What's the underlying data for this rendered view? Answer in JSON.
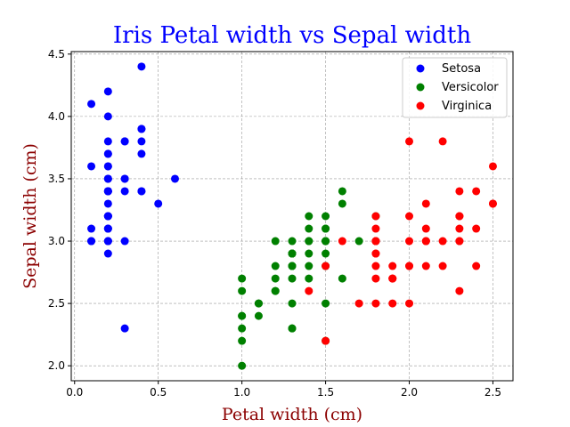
{
  "chart_data": {
    "type": "scatter",
    "title": "Iris Petal width vs Sepal width",
    "xlabel": "Petal width (cm)",
    "ylabel": "Sepal width (cm)",
    "xlim": [
      -0.02,
      2.62
    ],
    "ylim": [
      1.88,
      4.52
    ],
    "xticks": [
      0.0,
      0.5,
      1.0,
      1.5,
      2.0,
      2.5
    ],
    "xtick_labels": [
      "0.0",
      "0.5",
      "1.0",
      "1.5",
      "2.0",
      "2.5"
    ],
    "yticks": [
      2.0,
      2.5,
      3.0,
      3.5,
      4.0,
      4.5
    ],
    "ytick_labels": [
      "2.0",
      "2.5",
      "3.0",
      "3.5",
      "4.0",
      "4.5"
    ],
    "grid": true,
    "legend_position": "top-right",
    "series": [
      {
        "name": "Setosa",
        "color": "#0000ff",
        "points": [
          [
            0.2,
            3.5
          ],
          [
            0.2,
            3.0
          ],
          [
            0.2,
            3.2
          ],
          [
            0.2,
            3.1
          ],
          [
            0.2,
            3.6
          ],
          [
            0.4,
            3.9
          ],
          [
            0.3,
            3.4
          ],
          [
            0.2,
            3.4
          ],
          [
            0.2,
            2.9
          ],
          [
            0.1,
            3.1
          ],
          [
            0.2,
            3.7
          ],
          [
            0.2,
            3.4
          ],
          [
            0.1,
            3.0
          ],
          [
            0.1,
            3.0
          ],
          [
            0.2,
            4.0
          ],
          [
            0.4,
            4.4
          ],
          [
            0.4,
            3.9
          ],
          [
            0.3,
            3.5
          ],
          [
            0.3,
            3.8
          ],
          [
            0.3,
            3.8
          ],
          [
            0.2,
            3.4
          ],
          [
            0.4,
            3.7
          ],
          [
            0.2,
            3.6
          ],
          [
            0.5,
            3.3
          ],
          [
            0.2,
            3.4
          ],
          [
            0.2,
            3.0
          ],
          [
            0.4,
            3.4
          ],
          [
            0.2,
            3.5
          ],
          [
            0.2,
            3.4
          ],
          [
            0.2,
            3.2
          ],
          [
            0.2,
            3.1
          ],
          [
            0.4,
            3.4
          ],
          [
            0.1,
            4.1
          ],
          [
            0.2,
            4.2
          ],
          [
            0.2,
            3.1
          ],
          [
            0.2,
            3.2
          ],
          [
            0.2,
            3.5
          ],
          [
            0.1,
            3.6
          ],
          [
            0.2,
            3.0
          ],
          [
            0.2,
            3.4
          ],
          [
            0.3,
            3.5
          ],
          [
            0.3,
            2.3
          ],
          [
            0.2,
            3.2
          ],
          [
            0.6,
            3.5
          ],
          [
            0.4,
            3.8
          ],
          [
            0.3,
            3.0
          ],
          [
            0.2,
            3.8
          ],
          [
            0.2,
            3.2
          ],
          [
            0.2,
            3.7
          ],
          [
            0.2,
            3.3
          ]
        ]
      },
      {
        "name": "Versicolor",
        "color": "#008000",
        "points": [
          [
            1.4,
            3.2
          ],
          [
            1.5,
            3.2
          ],
          [
            1.5,
            3.1
          ],
          [
            1.3,
            2.3
          ],
          [
            1.5,
            2.8
          ],
          [
            1.3,
            2.8
          ],
          [
            1.6,
            3.3
          ],
          [
            1.0,
            2.4
          ],
          [
            1.3,
            2.9
          ],
          [
            1.4,
            2.7
          ],
          [
            1.0,
            2.0
          ],
          [
            1.5,
            3.0
          ],
          [
            1.0,
            2.2
          ],
          [
            1.4,
            2.9
          ],
          [
            1.3,
            2.9
          ],
          [
            1.4,
            3.1
          ],
          [
            1.5,
            3.0
          ],
          [
            1.0,
            2.7
          ],
          [
            1.5,
            2.2
          ],
          [
            1.1,
            2.5
          ],
          [
            1.8,
            3.2
          ],
          [
            1.3,
            2.8
          ],
          [
            1.5,
            2.5
          ],
          [
            1.2,
            2.8
          ],
          [
            1.3,
            2.9
          ],
          [
            1.4,
            3.0
          ],
          [
            1.4,
            2.8
          ],
          [
            1.7,
            3.0
          ],
          [
            1.5,
            2.9
          ],
          [
            1.0,
            2.6
          ],
          [
            1.1,
            2.4
          ],
          [
            1.0,
            2.4
          ],
          [
            1.2,
            2.7
          ],
          [
            1.6,
            2.7
          ],
          [
            1.5,
            3.0
          ],
          [
            1.6,
            3.4
          ],
          [
            1.5,
            3.1
          ],
          [
            1.3,
            2.3
          ],
          [
            1.3,
            3.0
          ],
          [
            1.3,
            2.5
          ],
          [
            1.2,
            2.6
          ],
          [
            1.4,
            3.0
          ],
          [
            1.2,
            2.6
          ],
          [
            1.0,
            2.3
          ],
          [
            1.3,
            2.7
          ],
          [
            1.2,
            3.0
          ],
          [
            1.3,
            2.9
          ],
          [
            1.3,
            2.9
          ],
          [
            1.1,
            2.5
          ],
          [
            1.3,
            2.8
          ]
        ]
      },
      {
        "name": "Virginica",
        "color": "#ff0000",
        "points": [
          [
            2.5,
            3.3
          ],
          [
            1.9,
            2.7
          ],
          [
            2.1,
            3.0
          ],
          [
            1.8,
            2.9
          ],
          [
            2.2,
            3.0
          ],
          [
            2.1,
            3.0
          ],
          [
            1.7,
            2.5
          ],
          [
            1.8,
            2.9
          ],
          [
            1.8,
            2.5
          ],
          [
            2.5,
            3.6
          ],
          [
            2.0,
            3.2
          ],
          [
            1.9,
            2.7
          ],
          [
            2.1,
            3.0
          ],
          [
            2.0,
            2.5
          ],
          [
            2.4,
            2.8
          ],
          [
            2.3,
            3.2
          ],
          [
            1.8,
            3.0
          ],
          [
            2.2,
            3.8
          ],
          [
            2.3,
            2.6
          ],
          [
            1.5,
            2.2
          ],
          [
            2.3,
            3.2
          ],
          [
            2.0,
            2.8
          ],
          [
            2.0,
            2.8
          ],
          [
            1.8,
            2.7
          ],
          [
            2.1,
            3.3
          ],
          [
            1.8,
            3.2
          ],
          [
            1.8,
            2.8
          ],
          [
            1.8,
            3.0
          ],
          [
            2.1,
            2.8
          ],
          [
            1.6,
            3.0
          ],
          [
            1.9,
            2.8
          ],
          [
            2.0,
            3.8
          ],
          [
            2.2,
            2.8
          ],
          [
            1.5,
            2.8
          ],
          [
            1.4,
            2.6
          ],
          [
            2.3,
            3.0
          ],
          [
            2.4,
            3.4
          ],
          [
            1.8,
            3.1
          ],
          [
            1.8,
            3.0
          ],
          [
            2.1,
            3.1
          ],
          [
            2.4,
            3.1
          ],
          [
            2.3,
            3.1
          ],
          [
            1.9,
            2.7
          ],
          [
            2.3,
            3.2
          ],
          [
            2.5,
            3.3
          ],
          [
            2.3,
            3.0
          ],
          [
            1.9,
            2.5
          ],
          [
            2.0,
            3.0
          ],
          [
            2.3,
            3.4
          ],
          [
            1.8,
            3.0
          ]
        ]
      }
    ]
  }
}
